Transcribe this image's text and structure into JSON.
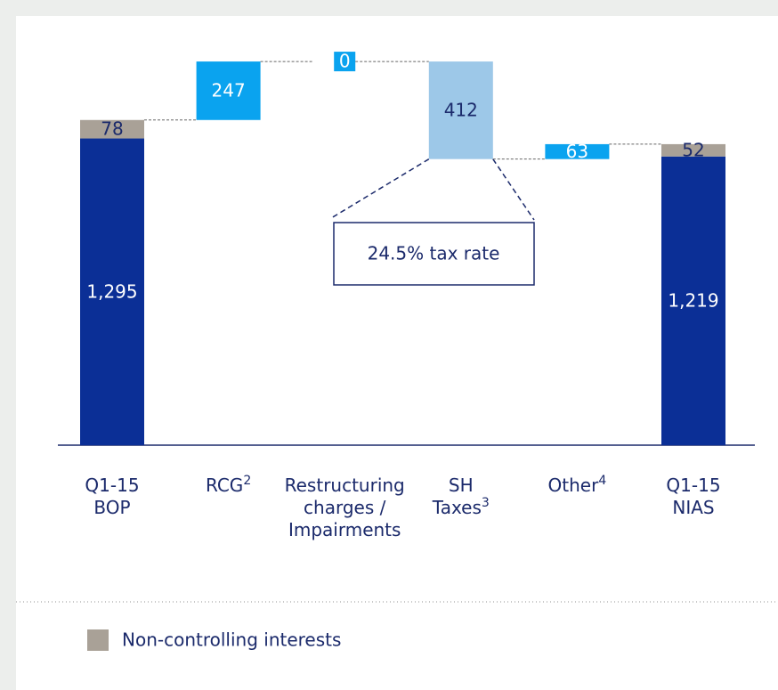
{
  "chart_data": {
    "type": "waterfall",
    "categories": [
      [
        "Q1-15",
        "BOP"
      ],
      [
        "RCG"
      ],
      [
        "Restructuring",
        "charges /",
        "Impairments"
      ],
      [
        "SH",
        "Taxes"
      ],
      [
        "Other"
      ],
      [
        "Q1-15",
        "NIAS"
      ]
    ],
    "footnotes": [
      null,
      "2",
      null,
      "3",
      "4",
      null
    ],
    "kinds": [
      "total",
      "delta",
      "delta",
      "delta",
      "delta",
      "total"
    ],
    "values": [
      1295,
      247,
      0,
      -412,
      63,
      1219
    ],
    "value_labels": [
      "1,295",
      "247",
      "0",
      "412",
      "63",
      "1,219"
    ],
    "colors": [
      "#0b2f96",
      "#0aa3ef",
      "#0aa3ef",
      "#9dc8e8",
      "#0aa3ef",
      "#0b2f96"
    ],
    "label_colors": [
      "#ffffff",
      "#ffffff",
      "#ffffff",
      "#1b2a6b",
      "#ffffff",
      "#ffffff"
    ],
    "nci": {
      "name": "Non-controlling interests",
      "color": "#a9a197",
      "values": [
        78,
        null,
        null,
        null,
        null,
        52
      ]
    },
    "annotation": "24.5% tax rate"
  }
}
